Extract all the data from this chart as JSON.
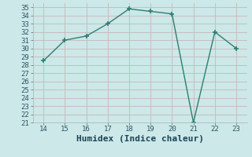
{
  "x": [
    14,
    15,
    16,
    17,
    18,
    19,
    20,
    21,
    22,
    23
  ],
  "y": [
    28.5,
    31.0,
    31.5,
    33.0,
    34.8,
    34.5,
    34.2,
    21.0,
    32.0,
    30.0
  ],
  "xlabel": "Humidex (Indice chaleur)",
  "xlim": [
    13.5,
    23.5
  ],
  "ylim": [
    21,
    35.5
  ],
  "yticks": [
    21,
    22,
    23,
    24,
    25,
    26,
    27,
    28,
    29,
    30,
    31,
    32,
    33,
    34,
    35
  ],
  "xticks": [
    14,
    15,
    16,
    17,
    18,
    19,
    20,
    21,
    22,
    23
  ],
  "line_color": "#2d7f72",
  "bg_color": "#cce8e8",
  "grid_color": "#c8b8b8",
  "xlabel_fontsize": 8,
  "tick_fontsize": 6.5
}
